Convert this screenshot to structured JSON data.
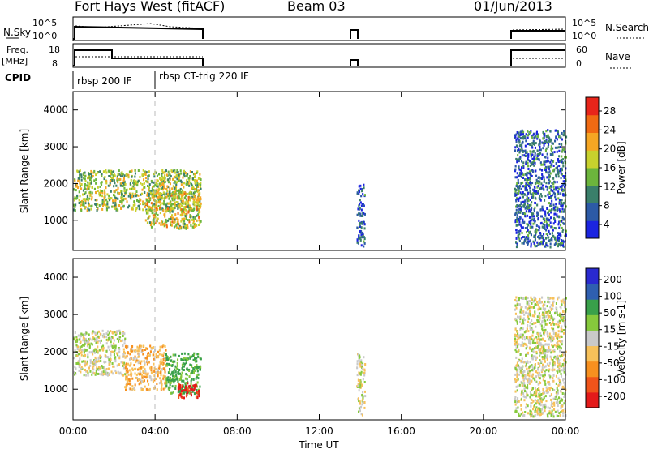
{
  "header": {
    "station": "Fort Hays West (fitACF)",
    "beam": "Beam 03",
    "date": "01/Jun/2013"
  },
  "strips": {
    "nsky_label": "N.Sky",
    "nsearch_label": "N.Search",
    "freq_label_1": "Freq.",
    "freq_label_2": "[MHz]",
    "nave_label": "Nave",
    "cpid_label": "CPID",
    "nsky_ticks": [
      "10^5",
      "10^0"
    ],
    "nsearch_ticks": [
      "10^5",
      "10^0"
    ],
    "freq_ticks": [
      "18",
      "8"
    ],
    "nave_ticks": [
      "60",
      "0"
    ],
    "cpid_segments": [
      {
        "label": "rbsp 200 IF",
        "start_h": 0,
        "end_h": 4
      },
      {
        "label": "rbsp CT-trig 220 IF",
        "start_h": 4,
        "end_h": 24
      }
    ]
  },
  "colors": {
    "power_scale": [
      "#1b24e0",
      "#2c5aa6",
      "#3a7f6a",
      "#6cb53c",
      "#c8d12d",
      "#f5a623",
      "#f06a12",
      "#e8251a"
    ],
    "velocity_scale": [
      "#e41a1a",
      "#f0541a",
      "#f7901f",
      "#f7c15a",
      "#c9c9c9",
      "#86c93c",
      "#39a04a",
      "#2f5fb0",
      "#2a2ad0"
    ]
  },
  "chart_data": [
    {
      "type": "heatmap",
      "name": "Power",
      "xlabel": "Time UT",
      "ylabel": "Slant Range [km]",
      "colorbar_label": "Power [dB]",
      "colorbar_ticks": [
        "28",
        "24",
        "20",
        "16",
        "12",
        "8",
        "4"
      ],
      "colorbar_range": [
        0,
        32
      ],
      "x_ticks": [
        "00:00",
        "04:00",
        "08:00",
        "12:00",
        "16:00",
        "20:00",
        "00:00"
      ],
      "xlim_hours": [
        0,
        24
      ],
      "y_ticks": [
        "4000",
        "3000",
        "2000",
        "1000"
      ],
      "ylim": [
        180,
        4500
      ],
      "grid": false,
      "cpid_boundary_hour": 4.0,
      "scatter_regions": [
        {
          "t_start": 0.0,
          "t_end": 6.2,
          "range_lo": 1300,
          "range_hi": 2400,
          "value": 16
        },
        {
          "t_start": 3.5,
          "t_end": 6.2,
          "range_lo": 800,
          "range_hi": 1800,
          "value": 18
        },
        {
          "t_start": 13.8,
          "t_end": 14.2,
          "range_lo": 300,
          "range_hi": 2000,
          "value": 6
        },
        {
          "t_start": 21.5,
          "t_end": 24.0,
          "range_lo": 300,
          "range_hi": 3500,
          "value": 7
        }
      ]
    },
    {
      "type": "heatmap",
      "name": "Velocity",
      "xlabel": "Time UT",
      "ylabel": "Slant Range [km]",
      "colorbar_label": "Velocity [m s-1]",
      "colorbar_ticks": [
        "200",
        "100",
        "50",
        "15",
        "-15",
        "-50",
        "-100",
        "-200"
      ],
      "colorbar_range": [
        -250,
        250
      ],
      "x_ticks": [
        "00:00",
        "04:00",
        "08:00",
        "12:00",
        "16:00",
        "20:00",
        "00:00"
      ],
      "xlim_hours": [
        0,
        24
      ],
      "y_ticks": [
        "4000",
        "3000",
        "2000",
        "1000"
      ],
      "ylim": [
        180,
        4500
      ],
      "grid": false,
      "cpid_boundary_hour": 4.0,
      "scatter_regions": [
        {
          "t_start": 0.0,
          "t_end": 2.5,
          "range_lo": 1400,
          "range_hi": 2600,
          "value": 0
        },
        {
          "t_start": 2.5,
          "t_end": 4.5,
          "range_lo": 1000,
          "range_hi": 2200,
          "value": -40
        },
        {
          "t_start": 4.5,
          "t_end": 6.2,
          "range_lo": 900,
          "range_hi": 2000,
          "value": 60
        },
        {
          "t_start": 5.0,
          "t_end": 6.2,
          "range_lo": 800,
          "range_hi": 1200,
          "value": -220
        },
        {
          "t_start": 13.8,
          "t_end": 14.2,
          "range_lo": 300,
          "range_hi": 2000,
          "value": 0
        },
        {
          "t_start": 21.5,
          "t_end": 24.0,
          "range_lo": 300,
          "range_hi": 3500,
          "value": 0
        }
      ]
    }
  ]
}
